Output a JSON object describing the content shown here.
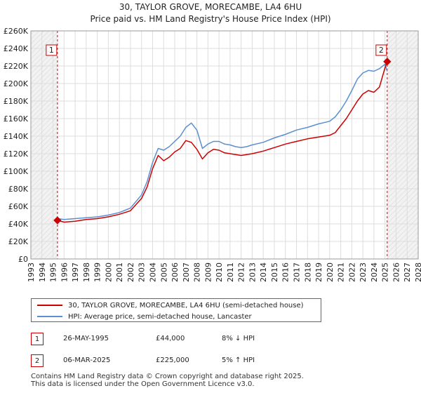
{
  "chart_data": {
    "type": "line",
    "title": "30, TAYLOR GROVE, MORECAMBE, LA4 6HU",
    "subtitle": "Price paid vs. HM Land Registry's House Price Index (HPI)",
    "xlim": [
      1993,
      2028
    ],
    "ylim": [
      0,
      260000
    ],
    "x_ticks": [
      "1993",
      "1994",
      "1995",
      "1996",
      "1997",
      "1998",
      "1999",
      "2000",
      "2001",
      "2002",
      "2003",
      "2004",
      "2005",
      "2006",
      "2007",
      "2008",
      "2009",
      "2010",
      "2011",
      "2012",
      "2013",
      "2014",
      "2015",
      "2016",
      "2017",
      "2018",
      "2019",
      "2020",
      "2021",
      "2022",
      "2023",
      "2024",
      "2025",
      "2026",
      "2027",
      "2028"
    ],
    "y_ticks": [
      {
        "value": 0,
        "label": "£0"
      },
      {
        "value": 20000,
        "label": "£20K"
      },
      {
        "value": 40000,
        "label": "£40K"
      },
      {
        "value": 60000,
        "label": "£60K"
      },
      {
        "value": 80000,
        "label": "£80K"
      },
      {
        "value": 100000,
        "label": "£100K"
      },
      {
        "value": 120000,
        "label": "£120K"
      },
      {
        "value": 140000,
        "label": "£140K"
      },
      {
        "value": 160000,
        "label": "£160K"
      },
      {
        "value": 180000,
        "label": "£180K"
      },
      {
        "value": 200000,
        "label": "£200K"
      },
      {
        "value": 220000,
        "label": "£220K"
      },
      {
        "value": 240000,
        "label": "£240K"
      },
      {
        "value": 260000,
        "label": "£260K"
      }
    ],
    "grid": true,
    "hatched_ranges": [
      [
        1993,
        1995.4
      ],
      [
        2025.2,
        2028
      ]
    ],
    "series": [
      {
        "name": "30, TAYLOR GROVE, MORECAMBE, LA4 6HU (semi-detached house)",
        "color": "#cc0000",
        "x": [
          1995.4,
          1996,
          1997,
          1998,
          1999,
          2000,
          2001,
          2002,
          2003,
          2003.5,
          2004,
          2004.5,
          2005,
          2005.5,
          2006,
          2006.5,
          2007,
          2007.5,
          2008,
          2008.5,
          2009,
          2009.5,
          2010,
          2010.5,
          2011,
          2011.5,
          2012,
          2012.5,
          2013,
          2014,
          2015,
          2016,
          2017,
          2018,
          2019,
          2020,
          2020.5,
          2021,
          2021.5,
          2022,
          2022.5,
          2023,
          2023.5,
          2024,
          2024.5,
          2025.0,
          2025.2
        ],
        "y": [
          44000,
          42000,
          43000,
          45000,
          46000,
          48000,
          51000,
          55000,
          69000,
          82000,
          103000,
          118000,
          112000,
          116000,
          122000,
          126000,
          135000,
          133000,
          125000,
          114000,
          121000,
          125000,
          124000,
          121000,
          120000,
          119000,
          118000,
          119000,
          120000,
          123000,
          127000,
          131000,
          134000,
          137000,
          139000,
          141000,
          144000,
          152000,
          160000,
          170000,
          180000,
          188000,
          192000,
          190000,
          196000,
          218000,
          225000
        ]
      },
      {
        "name": "HPI: Average price, semi-detached house, Lancaster",
        "color": "#5b8fd0",
        "x": [
          1995.4,
          1996,
          1997,
          1998,
          1999,
          2000,
          2001,
          2002,
          2003,
          2003.5,
          2004,
          2004.5,
          2005,
          2005.5,
          2006,
          2006.5,
          2007,
          2007.5,
          2008,
          2008.5,
          2009,
          2009.5,
          2010,
          2010.5,
          2011,
          2011.5,
          2012,
          2012.5,
          2013,
          2014,
          2015,
          2016,
          2017,
          2018,
          2019,
          2020,
          2020.5,
          2021,
          2021.5,
          2022,
          2022.5,
          2023,
          2023.5,
          2024,
          2024.5,
          2025.0,
          2025.2
        ],
        "y": [
          46000,
          45000,
          46000,
          47000,
          48000,
          50000,
          53000,
          58000,
          73000,
          88000,
          110000,
          126000,
          124000,
          128000,
          134000,
          140000,
          150000,
          155000,
          147000,
          126000,
          131000,
          134000,
          134000,
          131000,
          130000,
          128000,
          127000,
          128000,
          130000,
          133000,
          138000,
          142000,
          147000,
          150000,
          154000,
          157000,
          162000,
          170000,
          180000,
          192000,
          205000,
          212000,
          215000,
          214000,
          217000,
          222000,
          214000
        ]
      }
    ],
    "annotations": [
      {
        "label": "1",
        "x": 1995.4,
        "y": 44000
      },
      {
        "label": "2",
        "x": 2025.2,
        "y": 225000
      }
    ]
  },
  "legend": {
    "property_label": "30, TAYLOR GROVE, MORECAMBE, LA4 6HU (semi-detached house)",
    "hpi_label": "HPI: Average price, semi-detached house, Lancaster"
  },
  "sales": [
    {
      "num": "1",
      "date": "26-MAY-1995",
      "price": "£44,000",
      "hpi": "8% ↓ HPI"
    },
    {
      "num": "2",
      "date": "06-MAR-2025",
      "price": "£225,000",
      "hpi": "5% ↑ HPI"
    }
  ],
  "footer": {
    "line1": "Contains HM Land Registry data © Crown copyright and database right 2025.",
    "line2": "This data is licensed under the Open Government Licence v3.0."
  }
}
